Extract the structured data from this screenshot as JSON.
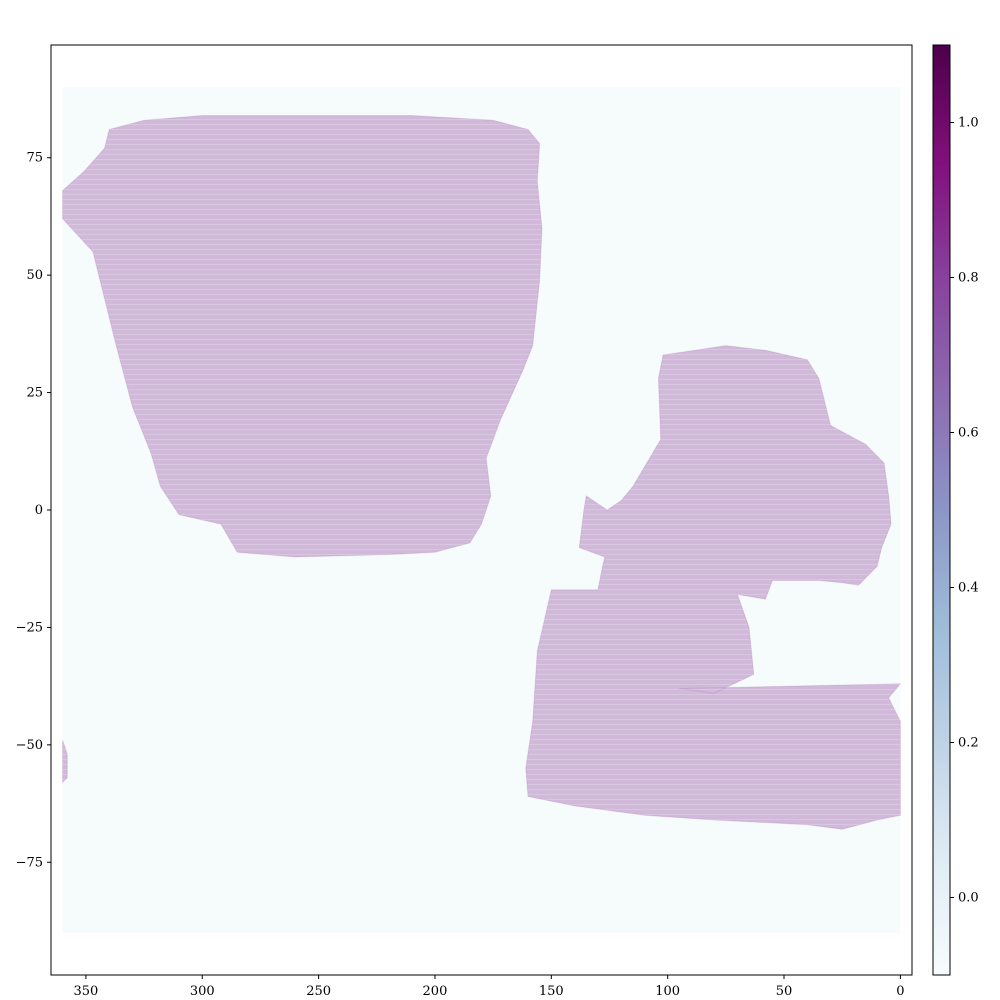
{
  "chart_data": {
    "type": "scatter",
    "title": "",
    "xlabel": "",
    "ylabel": "",
    "x_inverted": true,
    "xlim": [
      365,
      -5
    ],
    "ylim": [
      -99,
      99
    ],
    "xticks": [
      350,
      300,
      250,
      200,
      150,
      100,
      50,
      0
    ],
    "yticks": [
      75,
      50,
      25,
      0,
      -25,
      -50,
      -75
    ],
    "xtick_labels": [
      "350",
      "300",
      "250",
      "200",
      "150",
      "100",
      "50",
      "0"
    ],
    "ytick_labels": [
      "75",
      "50",
      "25",
      "0",
      "−25",
      "−50",
      "−75"
    ],
    "grid": false,
    "colormap": "BuPu",
    "colorbar": {
      "range": [
        -0.1,
        1.1
      ],
      "ticks": [
        0.0,
        0.2,
        0.4,
        0.6,
        0.8,
        1.0
      ],
      "tick_labels": [
        "0.0",
        "0.2",
        "0.4",
        "0.6",
        "0.8",
        "1.0"
      ]
    },
    "background_value": 0.0,
    "footprint_value": 1.0,
    "footprint_alpha": 0.35,
    "footprint_color": "#8c3e9c",
    "background_color": "#f6fbfc",
    "regions": [
      {
        "name": "",
        "value": 1.0,
        "outline_deg": [
          [
            340,
            81
          ],
          [
            325,
            83
          ],
          [
            300,
            84
          ],
          [
            270,
            84
          ],
          [
            240,
            84
          ],
          [
            210,
            84
          ],
          [
            175,
            83
          ],
          [
            160,
            81
          ],
          [
            155,
            78
          ],
          [
            156,
            70
          ],
          [
            154,
            60
          ],
          [
            155,
            49
          ],
          [
            158,
            35
          ],
          [
            162,
            30
          ],
          [
            172,
            19
          ],
          [
            178,
            11
          ],
          [
            176,
            3
          ],
          [
            180,
            -3
          ],
          [
            185,
            -7
          ],
          [
            200,
            -9
          ],
          [
            220,
            -9.5
          ],
          [
            260,
            -10
          ],
          [
            285,
            -9
          ],
          [
            292,
            -3
          ],
          [
            310,
            -1
          ],
          [
            318,
            5
          ],
          [
            322,
            12
          ],
          [
            330,
            22
          ],
          [
            337,
            35
          ],
          [
            347,
            55
          ],
          [
            360,
            62
          ],
          [
            360,
            68
          ],
          [
            351,
            72
          ],
          [
            342,
            77
          ]
        ]
      },
      {
        "name": "",
        "value": 1.0,
        "outline_deg": [
          [
            102,
            33
          ],
          [
            75,
            35
          ],
          [
            58,
            34
          ],
          [
            40,
            32
          ],
          [
            35,
            28
          ],
          [
            30,
            18
          ],
          [
            15,
            14
          ],
          [
            7,
            10
          ],
          [
            5,
            3
          ],
          [
            4,
            -3
          ],
          [
            8,
            -8
          ],
          [
            10,
            -12
          ],
          [
            18,
            -16
          ],
          [
            25,
            -15.5
          ],
          [
            35,
            -15
          ],
          [
            55,
            -15
          ],
          [
            58,
            -19
          ],
          [
            70,
            -18
          ],
          [
            65,
            -25
          ],
          [
            63,
            -35
          ],
          [
            80,
            -39
          ],
          [
            95,
            -38
          ],
          [
            0,
            -37
          ],
          [
            0,
            -37
          ],
          [
            5,
            -40
          ],
          [
            0,
            -45
          ],
          [
            0,
            -65
          ],
          [
            10,
            -66
          ],
          [
            25,
            -68
          ],
          [
            40,
            -67
          ],
          [
            80,
            -66
          ],
          [
            110,
            -65
          ],
          [
            140,
            -63
          ],
          [
            160,
            -61
          ],
          [
            161,
            -55
          ],
          [
            158,
            -45
          ],
          [
            156,
            -30
          ],
          [
            150,
            -17
          ],
          [
            130,
            -17
          ],
          [
            128,
            -12
          ],
          [
            127,
            -10
          ],
          [
            138,
            -8
          ],
          [
            136,
            0
          ],
          [
            135,
            3
          ],
          [
            126,
            0
          ],
          [
            120,
            2
          ],
          [
            115,
            5
          ],
          [
            103,
            15
          ],
          [
            104,
            28
          ]
        ]
      },
      {
        "name": "",
        "value": 1.0,
        "outline_deg": [
          [
            360,
            -49
          ],
          [
            358,
            -52
          ],
          [
            358,
            -57
          ],
          [
            360,
            -58
          ]
        ]
      }
    ]
  }
}
